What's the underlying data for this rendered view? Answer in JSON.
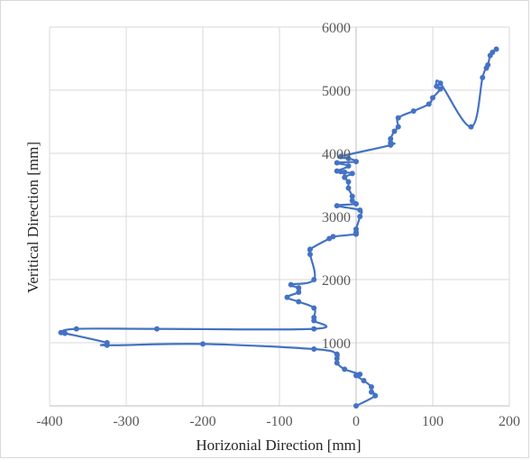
{
  "chart_data": {
    "type": "scatter",
    "title": "",
    "xlabel": "Horizonial Direction [mm]",
    "ylabel": "Veritical Direction [mm]",
    "xlim": [
      -400,
      200
    ],
    "ylim": [
      0,
      6000
    ],
    "x_ticks": [
      -400,
      -300,
      -200,
      -100,
      0,
      100,
      200
    ],
    "y_ticks": [
      1000,
      2000,
      3000,
      4000,
      5000,
      6000
    ],
    "grid": true,
    "legend": "none",
    "color": "#4472c4",
    "series": [
      {
        "points": [
          [
            0,
            0
          ],
          [
            25,
            160
          ],
          [
            20,
            220
          ],
          [
            20,
            300
          ],
          [
            10,
            400
          ],
          [
            0,
            480
          ],
          [
            5,
            500
          ],
          [
            -15,
            580
          ],
          [
            -25,
            680
          ],
          [
            -25,
            750
          ],
          [
            -25,
            820
          ],
          [
            -55,
            900
          ],
          [
            -200,
            980
          ],
          [
            -325,
            960
          ],
          [
            -325,
            1000
          ],
          [
            -380,
            1150
          ],
          [
            -385,
            1160
          ],
          [
            -365,
            1220
          ],
          [
            -260,
            1220
          ],
          [
            -55,
            1220
          ],
          [
            -55,
            1350
          ],
          [
            -55,
            1400
          ],
          [
            -55,
            1550
          ],
          [
            -75,
            1650
          ],
          [
            -90,
            1720
          ],
          [
            -75,
            1800
          ],
          [
            -75,
            1870
          ],
          [
            -85,
            1920
          ],
          [
            -55,
            2000
          ],
          [
            -60,
            2400
          ],
          [
            -60,
            2480
          ],
          [
            -35,
            2650
          ],
          [
            -30,
            2680
          ],
          [
            0,
            2720
          ],
          [
            0,
            2750
          ],
          [
            0,
            2800
          ],
          [
            5,
            3000
          ],
          [
            5,
            3100
          ],
          [
            -25,
            3170
          ],
          [
            0,
            3200
          ],
          [
            -5,
            3250
          ],
          [
            -5,
            3320
          ],
          [
            -10,
            3450
          ],
          [
            -10,
            3550
          ],
          [
            -15,
            3620
          ],
          [
            -5,
            3680
          ],
          [
            -15,
            3700
          ],
          [
            -20,
            3710
          ],
          [
            -25,
            3720
          ],
          [
            -10,
            3800
          ],
          [
            -25,
            3850
          ],
          [
            0,
            3870
          ],
          [
            -10,
            3920
          ],
          [
            -20,
            3950
          ],
          [
            45,
            4130
          ],
          [
            45,
            4170
          ],
          [
            45,
            4230
          ],
          [
            50,
            4350
          ],
          [
            55,
            4420
          ],
          [
            55,
            4560
          ],
          [
            75,
            4670
          ],
          [
            95,
            4780
          ],
          [
            100,
            4880
          ],
          [
            110,
            5020
          ],
          [
            105,
            5060
          ],
          [
            110,
            5110
          ],
          [
            150,
            4420
          ],
          [
            165,
            5200
          ],
          [
            170,
            5350
          ],
          [
            172,
            5400
          ],
          [
            175,
            5550
          ],
          [
            178,
            5600
          ],
          [
            183,
            5650
          ]
        ]
      }
    ]
  }
}
